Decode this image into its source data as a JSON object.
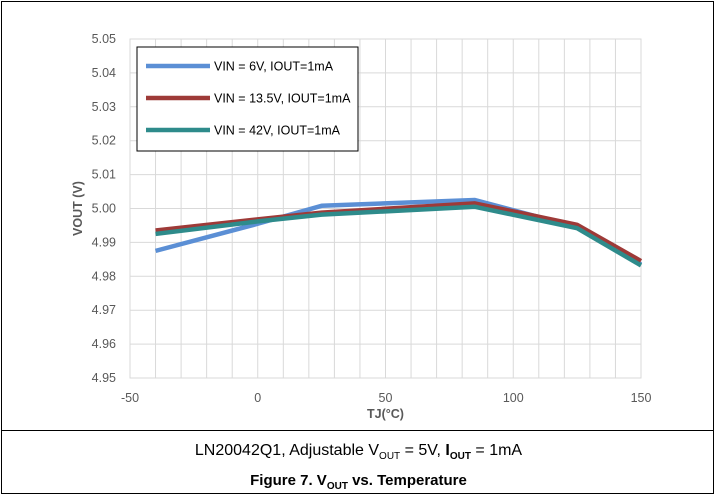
{
  "caption": {
    "prefix": "LN20042Q1, Adjustable V",
    "sub1": "OUT",
    "middle": " = 5V, ",
    "bold_i": "I",
    "sub2": "OUT",
    "suffix": " = 1mA"
  },
  "figure_title": {
    "prefix": "Figure 7. V",
    "sub": "OUT",
    "suffix": " vs. Temperature"
  },
  "chart_data": {
    "type": "line",
    "xlabel": "TJ(°C)",
    "ylabel": "VOUT (V)",
    "xlim": [
      -50,
      150
    ],
    "ylim": [
      4.95,
      5.05
    ],
    "x_ticks": [
      -50,
      0,
      50,
      100,
      150
    ],
    "y_ticks": [
      4.95,
      4.96,
      4.97,
      4.98,
      4.99,
      5.0,
      5.01,
      5.02,
      5.03,
      5.04,
      5.05
    ],
    "y_tick_labels": [
      "4.95",
      "4.96",
      "4.97",
      "4.98",
      "4.99",
      "5.00",
      "5.01",
      "5.02",
      "5.03",
      "5.04",
      "5.05"
    ],
    "x_tick_labels": [
      "-50",
      "0",
      "50",
      "100",
      "150"
    ],
    "grid": true,
    "legend_position": "top-left",
    "series": [
      {
        "name": "VIN = 6V, IOUT=1mA",
        "color": "#5B8FD5",
        "x": [
          -40,
          0,
          25,
          85,
          125,
          150
        ],
        "y": [
          4.9875,
          4.9955,
          5.0008,
          5.0025,
          4.9945,
          4.9835
        ]
      },
      {
        "name": "VIN = 13.5V, IOUT=1mA",
        "color": "#9E3A38",
        "x": [
          -40,
          0,
          25,
          85,
          125,
          150
        ],
        "y": [
          4.9935,
          4.9968,
          4.9988,
          5.0015,
          4.9952,
          4.9845
        ]
      },
      {
        "name": "VIN = 42V, IOUT=1mA",
        "color": "#2E8B8B",
        "x": [
          -40,
          0,
          25,
          85,
          125,
          150
        ],
        "y": [
          4.9925,
          4.9962,
          4.9982,
          5.0005,
          4.9942,
          4.9832
        ]
      }
    ]
  }
}
